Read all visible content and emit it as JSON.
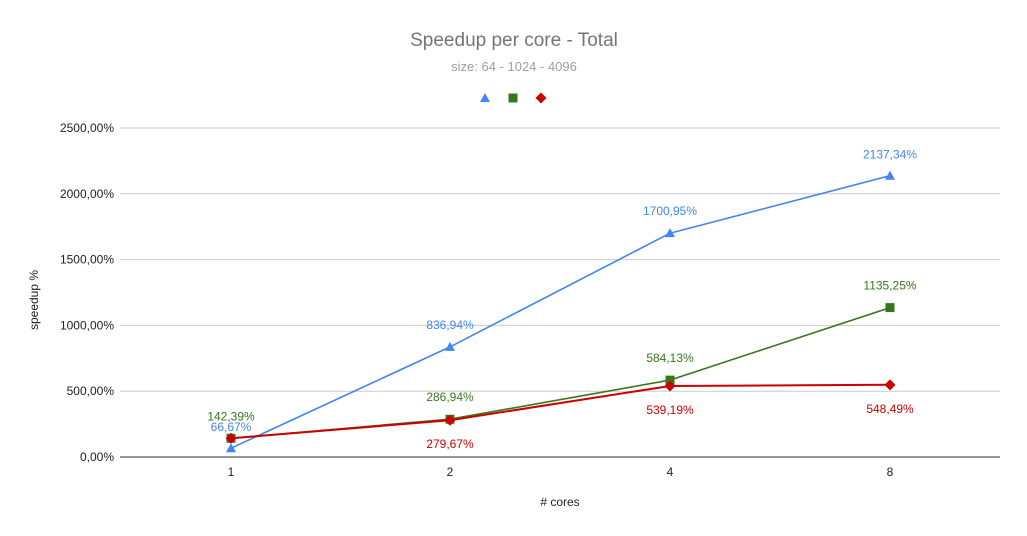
{
  "chart_data": {
    "type": "line",
    "title": "Speedup per core - Total",
    "subtitle": "size: 64 - 1024 - 4096",
    "xlabel": "# cores",
    "ylabel": "speedup %",
    "categories": [
      "1",
      "2",
      "4",
      "8"
    ],
    "ylim": [
      0,
      2500
    ],
    "yticks": [
      0,
      500,
      1000,
      1500,
      2000,
      2500
    ],
    "ytick_labels": [
      "0,00%",
      "500,00%",
      "1000,00%",
      "1500,00%",
      "2000,00%",
      "2500,00%"
    ],
    "grid": true,
    "legend_position": "top",
    "series": [
      {
        "color": "#4285f4",
        "marker": "triangle",
        "values": [
          66.67,
          836.94,
          1700.95,
          2137.34
        ],
        "labels": [
          "66,67%",
          "836,94%",
          "1700,95%",
          "2137,34%"
        ]
      },
      {
        "color": "#38761d",
        "marker": "square",
        "values": [
          142.39,
          286.94,
          584.13,
          1135.25
        ],
        "labels": [
          "142,39%",
          "286,94%",
          "584,13%",
          "1135,25%"
        ]
      },
      {
        "color": "#cc0000",
        "marker": "diamond",
        "values": [
          142.39,
          279.67,
          539.19,
          548.49
        ],
        "labels": [
          "",
          "279,67%",
          "539,19%",
          "548,49%"
        ]
      }
    ]
  }
}
